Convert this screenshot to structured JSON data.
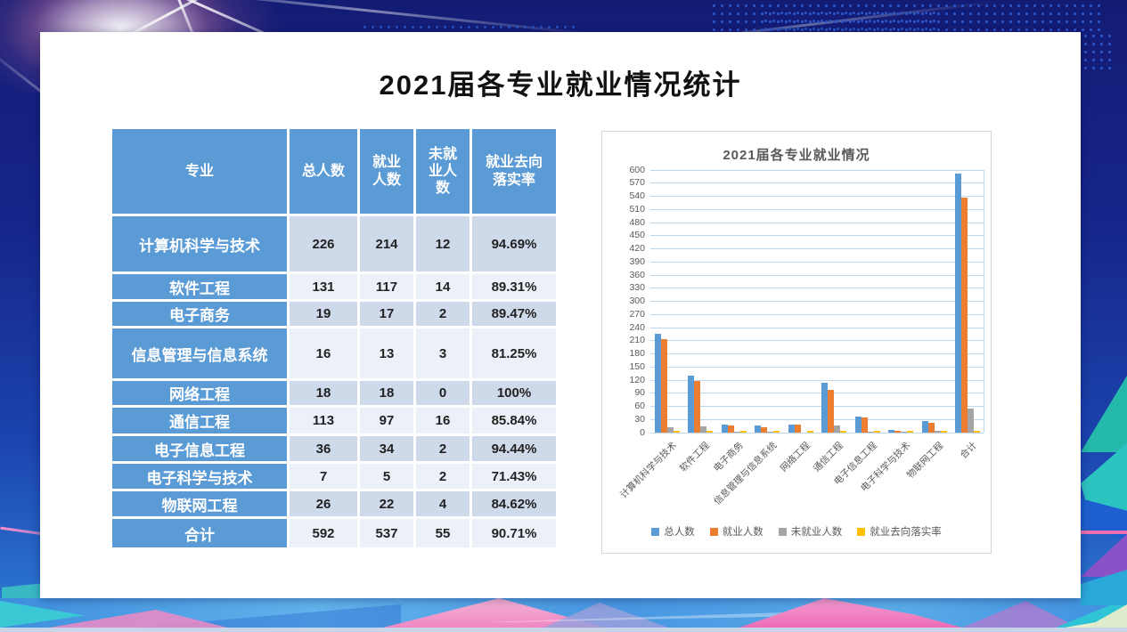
{
  "slide": {
    "title": "2021届各专业就业情况统计"
  },
  "table": {
    "headers": [
      "专业",
      "总人数",
      "就业\n人数",
      "未就\n业人\n数",
      "就业去向\n落实率"
    ],
    "rows": [
      {
        "major": "计算机科学与技术",
        "total": "226",
        "employed": "214",
        "unemployed": "12",
        "rate": "94.69%"
      },
      {
        "major": "软件工程",
        "total": "131",
        "employed": "117",
        "unemployed": "14",
        "rate": "89.31%"
      },
      {
        "major": "电子商务",
        "total": "19",
        "employed": "17",
        "unemployed": "2",
        "rate": "89.47%"
      },
      {
        "major": "信息管理与信息系统",
        "total": "16",
        "employed": "13",
        "unemployed": "3",
        "rate": "81.25%"
      },
      {
        "major": "网络工程",
        "total": "18",
        "employed": "18",
        "unemployed": "0",
        "rate": "100%"
      },
      {
        "major": "通信工程",
        "total": "113",
        "employed": "97",
        "unemployed": "16",
        "rate": "85.84%"
      },
      {
        "major": "电子信息工程",
        "total": "36",
        "employed": "34",
        "unemployed": "2",
        "rate": "94.44%"
      },
      {
        "major": "电子科学与技术",
        "total": "7",
        "employed": "5",
        "unemployed": "2",
        "rate": "71.43%"
      },
      {
        "major": "物联网工程",
        "total": "26",
        "employed": "22",
        "unemployed": "4",
        "rate": "84.62%"
      },
      {
        "major": "合计",
        "total": "592",
        "employed": "537",
        "unemployed": "55",
        "rate": "90.71%"
      }
    ]
  },
  "chart_data": {
    "type": "bar",
    "title": "2021届各专业就业情况",
    "categories": [
      "计算机科学与技术",
      "软件工程",
      "电子商务",
      "信息管理与信息系统",
      "网络工程",
      "通信工程",
      "电子信息工程",
      "电子科学与技术",
      "物联网工程",
      "合计"
    ],
    "series": [
      {
        "name": "总人数",
        "color": "#5B9BD5",
        "values": [
          226,
          131,
          19,
          16,
          18,
          113,
          36,
          7,
          26,
          592
        ]
      },
      {
        "name": "就业人数",
        "color": "#ED7D31",
        "values": [
          214,
          117,
          17,
          13,
          18,
          97,
          34,
          5,
          22,
          537
        ]
      },
      {
        "name": "未就业人数",
        "color": "#A5A5A5",
        "values": [
          12,
          14,
          2,
          3,
          0,
          16,
          2,
          2,
          4,
          55
        ]
      },
      {
        "name": "就业去向落实率",
        "color": "#FFC000",
        "values": [
          0.9469,
          0.8931,
          0.8947,
          0.8125,
          1.0,
          0.8584,
          0.9444,
          0.7143,
          0.8462,
          0.9071
        ]
      }
    ],
    "ylim": [
      0,
      600
    ],
    "ytick_step": 30,
    "grid": true,
    "legend_position": "bottom"
  },
  "colors": {
    "table_header_bg": "#5B9BD5",
    "table_band_dark": "#CED9EA",
    "table_band_light": "#ECF0F8",
    "grid_line": "#BDD7EE",
    "axis_text": "#595959"
  }
}
